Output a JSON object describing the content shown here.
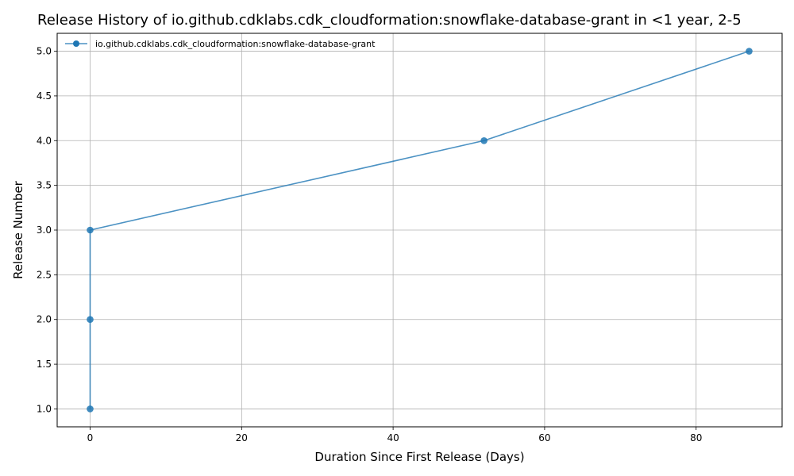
{
  "chart_data": {
    "type": "line",
    "title": "Release History of io.github.cdklabs.cdk_cloudformation:snowflake-database-grant in <1 year, 2-5",
    "xlabel": "Duration Since First Release (Days)",
    "ylabel": "Release Number",
    "xlim": [
      -4.35,
      91.35
    ],
    "ylim": [
      0.8,
      5.2
    ],
    "x_ticks": [
      0,
      20,
      40,
      60,
      80
    ],
    "y_ticks": [
      1.0,
      1.5,
      2.0,
      2.5,
      3.0,
      3.5,
      4.0,
      4.5,
      5.0
    ],
    "x_tick_labels": [
      "0",
      "20",
      "40",
      "60",
      "80"
    ],
    "y_tick_labels": [
      "1.0",
      "1.5",
      "2.0",
      "2.5",
      "3.0",
      "3.5",
      "4.0",
      "4.5",
      "5.0"
    ],
    "grid": true,
    "legend_position": "top-left",
    "series": [
      {
        "name": "io.github.cdklabs.cdk_cloudformation:snowflake-database-grant",
        "color": "#1f77b4",
        "marker": "circle",
        "x": [
          0,
          0,
          0,
          52,
          87
        ],
        "y": [
          1,
          2,
          3,
          4,
          5
        ]
      }
    ]
  }
}
